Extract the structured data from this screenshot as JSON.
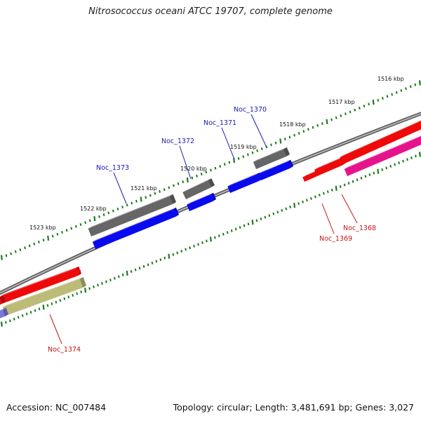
{
  "title": "Nitrosococcus oceani ATCC 19707, complete genome",
  "footer": {
    "accession": "Accession: NC_007484",
    "summary": "Topology: circular; Length: 3,481,691 bp; Genes: 3,027"
  },
  "colors": {
    "backbone": "#808080",
    "tick": "#1e7a1e",
    "label_blue": "#1a1ab4",
    "label_red": "#c81414",
    "feature_gray": "#666666",
    "feature_blue": "#0a0aee",
    "feature_red": "#ee0a0a",
    "feature_pink": "#e6148c",
    "feature_olive": "#bdbb78",
    "feature_purple": "#7777dd"
  },
  "tick_labels": [
    "1516 kbp",
    "1517 kbp",
    "1518 kbp",
    "1519 kbp",
    "1520 kbp",
    "1521 kbp",
    "1522 kbp",
    "1523 kbp"
  ],
  "gene_labels": [
    {
      "text": "Noc_1370",
      "color": "label_blue"
    },
    {
      "text": "Noc_1371",
      "color": "label_blue"
    },
    {
      "text": "Noc_1372",
      "color": "label_blue"
    },
    {
      "text": "Noc_1373",
      "color": "label_blue"
    },
    {
      "text": "Noc_1368",
      "color": "label_red"
    },
    {
      "text": "Noc_1369",
      "color": "label_red"
    },
    {
      "text": "Noc_1374",
      "color": "label_red"
    }
  ]
}
